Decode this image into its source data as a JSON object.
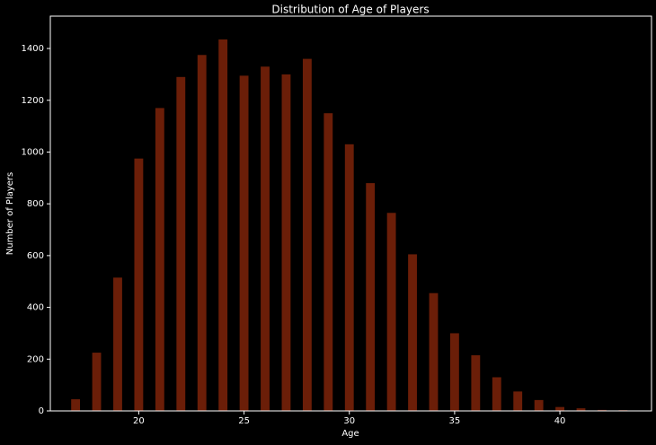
{
  "chart_data": {
    "type": "bar",
    "title": "Distribution of Age of Players",
    "x_label": "Age",
    "y_label": "Number of Players",
    "x": [
      17,
      18,
      19,
      20,
      21,
      22,
      23,
      24,
      25,
      26,
      27,
      28,
      29,
      30,
      31,
      32,
      33,
      34,
      35,
      36,
      37,
      38,
      39,
      40,
      41,
      42,
      43
    ],
    "values": [
      45,
      225,
      515,
      975,
      1170,
      1290,
      1375,
      1435,
      1295,
      1330,
      1300,
      1360,
      1150,
      1030,
      880,
      765,
      605,
      455,
      300,
      215,
      130,
      75,
      42,
      15,
      10,
      4,
      3
    ],
    "color": "#6b1e08",
    "xlim": [
      15.8,
      44.35
    ],
    "xticks": [
      20,
      25,
      30,
      35,
      40
    ],
    "ylim": [
      0,
      1525
    ],
    "yticks": [
      0,
      200,
      400,
      600,
      800,
      1000,
      1200,
      1400
    ]
  }
}
